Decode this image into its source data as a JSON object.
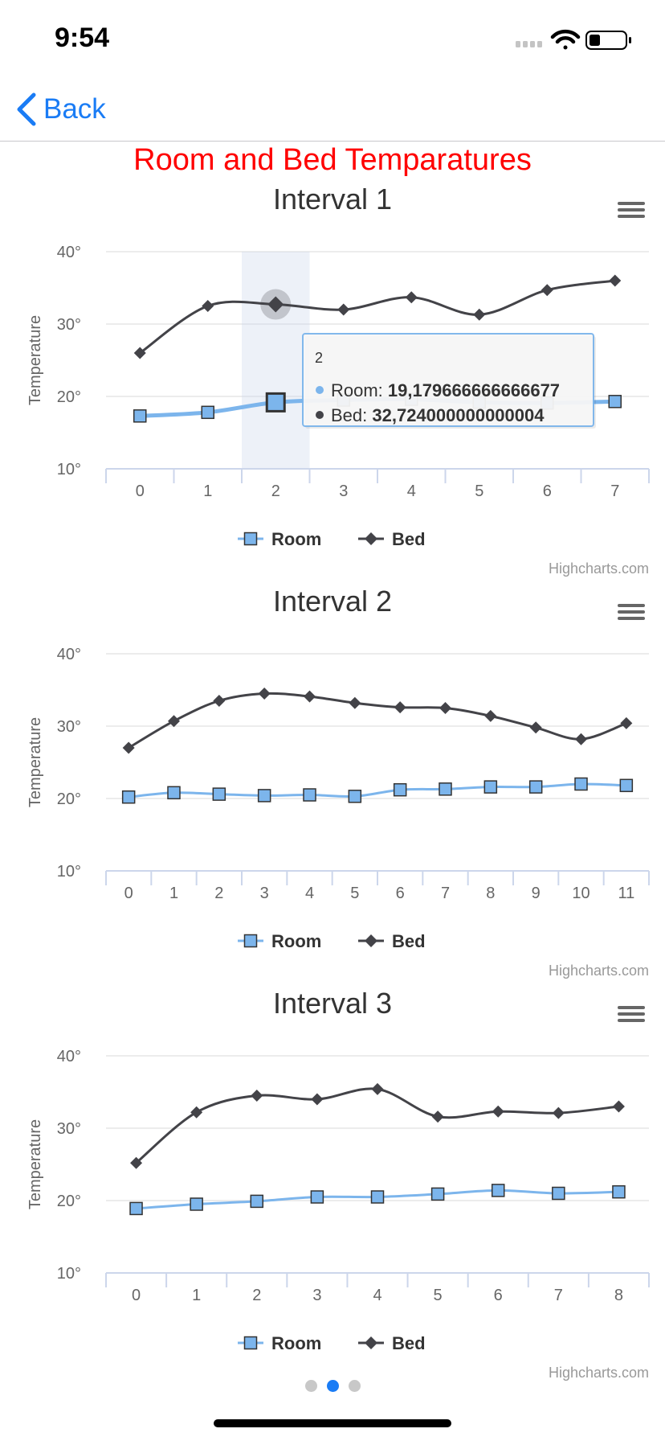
{
  "status_bar": {
    "time": "9:54"
  },
  "nav": {
    "back_label": "Back"
  },
  "page": {
    "title": "Room and Bed Temparatures"
  },
  "colors": {
    "room": "#7cb5ec",
    "bed": "#434348",
    "title": "#ff0000",
    "link": "#1a7cf5"
  },
  "icons": {
    "back": "chevron-left-icon",
    "menu": "hamburger-menu-icon",
    "room_marker": "square",
    "bed_marker": "diamond"
  },
  "credit_text": "Highcharts.com",
  "pager": {
    "count": 3,
    "active": 1
  },
  "chart_data": [
    {
      "type": "line",
      "title": "Interval 1",
      "ylabel": "Temperature",
      "ylim": [
        10,
        40
      ],
      "yticks": [
        "10°",
        "20°",
        "30°",
        "40°"
      ],
      "categories": [
        "0",
        "1",
        "2",
        "3",
        "4",
        "5",
        "6",
        "7"
      ],
      "series": [
        {
          "name": "Room",
          "values": [
            17.3,
            17.8,
            19.18,
            19.5,
            19.6,
            19.2,
            19.1,
            19.3
          ]
        },
        {
          "name": "Bed",
          "values": [
            26.0,
            32.5,
            32.72,
            32.0,
            33.7,
            31.3,
            34.7,
            36.0
          ]
        }
      ],
      "legend": "bottom-center",
      "tooltip": {
        "header": "2",
        "room_label": "Room: ",
        "room_value": "19,179666666666677",
        "bed_label": "Bed: ",
        "bed_value": "32,724000000000004"
      },
      "highlight_index": 2
    },
    {
      "type": "line",
      "title": "Interval 2",
      "ylabel": "Temperature",
      "ylim": [
        10,
        40
      ],
      "yticks": [
        "10°",
        "20°",
        "30°",
        "40°"
      ],
      "categories": [
        "0",
        "1",
        "2",
        "3",
        "4",
        "5",
        "6",
        "7",
        "8",
        "9",
        "10",
        "11"
      ],
      "series": [
        {
          "name": "Room",
          "values": [
            20.2,
            20.8,
            20.6,
            20.4,
            20.5,
            20.3,
            21.2,
            21.3,
            21.6,
            21.6,
            22.0,
            21.8
          ]
        },
        {
          "name": "Bed",
          "values": [
            27.0,
            30.7,
            33.5,
            34.5,
            34.1,
            33.2,
            32.6,
            32.5,
            31.4,
            29.8,
            28.2,
            30.4
          ]
        }
      ],
      "legend": "bottom-center"
    },
    {
      "type": "line",
      "title": "Interval 3",
      "ylabel": "Temperature",
      "ylim": [
        10,
        40
      ],
      "yticks": [
        "10°",
        "20°",
        "30°",
        "40°"
      ],
      "categories": [
        "0",
        "1",
        "2",
        "3",
        "4",
        "5",
        "6",
        "7",
        "8"
      ],
      "series": [
        {
          "name": "Room",
          "values": [
            18.9,
            19.5,
            19.9,
            20.5,
            20.5,
            20.9,
            21.4,
            21.0,
            21.2
          ]
        },
        {
          "name": "Bed",
          "values": [
            25.2,
            32.2,
            34.5,
            34.0,
            35.4,
            31.6,
            32.3,
            32.1,
            33.0
          ]
        }
      ],
      "legend": "bottom-center"
    }
  ]
}
